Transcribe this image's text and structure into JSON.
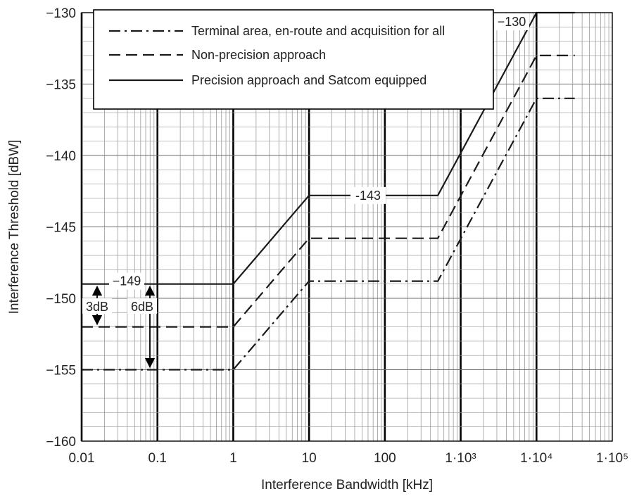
{
  "chart_data": {
    "type": "line",
    "title": "",
    "xlabel": "Interference Bandwidth [kHz]",
    "ylabel": "Interference Threshold [dBW]",
    "x_scale": "log",
    "xlim": [
      0.01,
      100000
    ],
    "ylim": [
      -160,
      -130
    ],
    "x_ticks": [
      0.01,
      0.1,
      1,
      10,
      100,
      1000,
      10000,
      100000
    ],
    "x_tick_labels": [
      "0.01",
      "0.1",
      "1",
      "10",
      "100",
      "1·10³",
      "1·10⁴",
      "1·10⁵"
    ],
    "y_ticks": [
      -160,
      -155,
      -150,
      -145,
      -140,
      -135,
      -130
    ],
    "y_tick_labels": [
      "−160",
      "−155",
      "−150",
      "−145",
      "−140",
      "−135",
      "−130"
    ],
    "grid": true,
    "legend_position": "top-left",
    "series": [
      {
        "name": "Terminal area, en-route and acquisition for all",
        "style": "dashdot",
        "x": [
          0.01,
          1,
          10,
          500,
          10000,
          32000
        ],
        "y": [
          -155,
          -155,
          -148.8,
          -148.8,
          -136,
          -136
        ]
      },
      {
        "name": "Non-precision approach",
        "style": "dashed",
        "x": [
          0.01,
          1,
          10,
          500,
          10000,
          32000
        ],
        "y": [
          -152,
          -152,
          -145.8,
          -145.8,
          -133,
          -133
        ]
      },
      {
        "name": "Precision approach and Satcom equipped",
        "style": "solid",
        "x": [
          0.01,
          1,
          10,
          500,
          10000,
          32000
        ],
        "y": [
          -149,
          -149,
          -142.8,
          -142.8,
          -130,
          -130
        ]
      }
    ],
    "annotations": {
      "label_149": "−149",
      "label_143": "-143",
      "label_130": "−130",
      "label_3db": "3dB",
      "label_6db": "6dB"
    },
    "colors": {
      "lines": "#1a1a1a",
      "grid": "#9a9a9a",
      "axis": "#000000"
    }
  }
}
